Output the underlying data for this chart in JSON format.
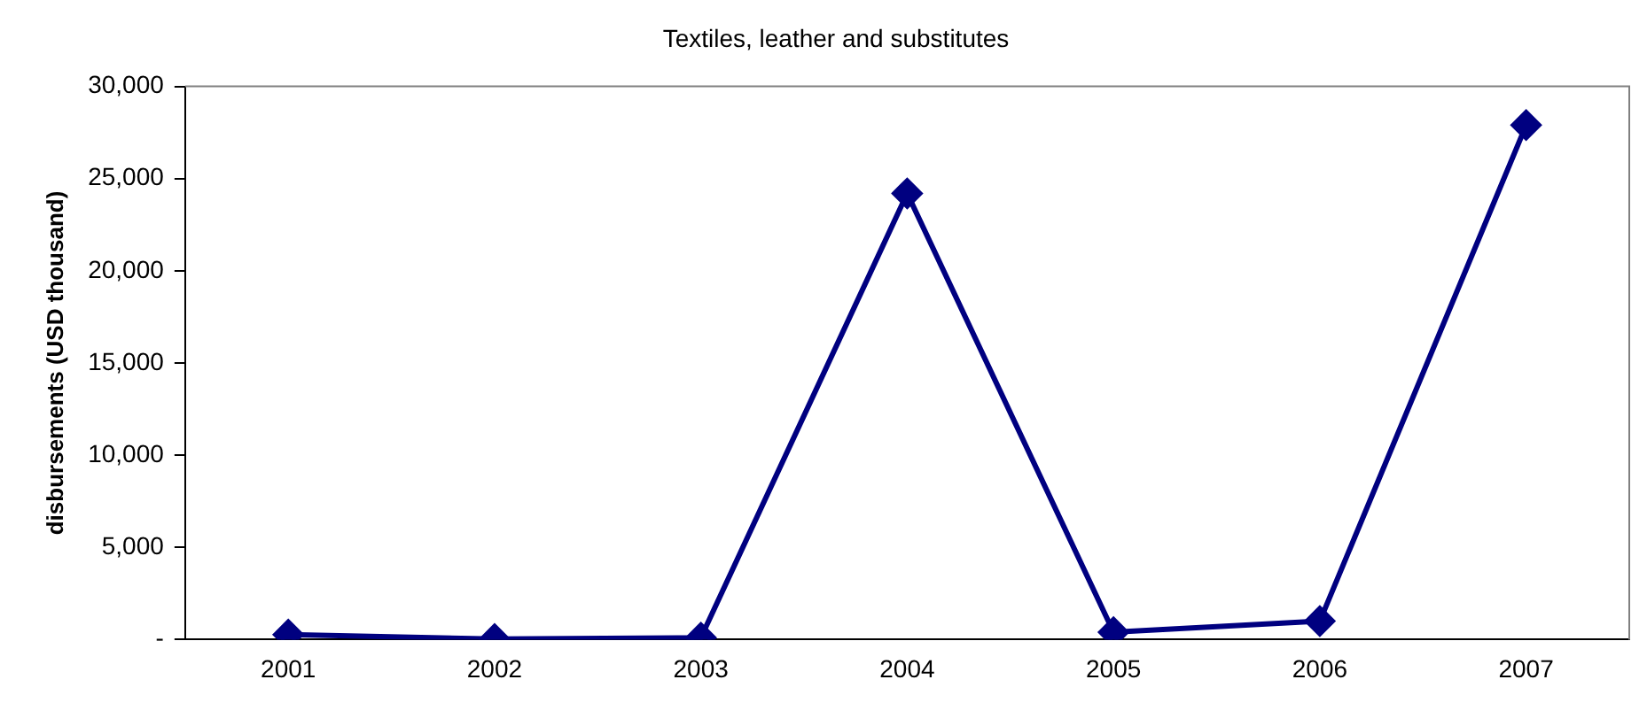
{
  "chart_data": {
    "type": "line",
    "title": "Textiles, leather and substitutes",
    "ylabel": "disbursements (USD thousand)",
    "categories": [
      "2001",
      "2002",
      "2003",
      "2004",
      "2005",
      "2006",
      "2007"
    ],
    "series": [
      {
        "color": "#000080",
        "values": [
          270,
          30,
          100,
          24200,
          400,
          1000,
          27900
        ]
      }
    ],
    "ylim": [
      0,
      30000
    ],
    "yticks": [
      {
        "value": 0,
        "label": "-"
      },
      {
        "value": 5000,
        "label": "5,000"
      },
      {
        "value": 10000,
        "label": "10,000"
      },
      {
        "value": 15000,
        "label": "15,000"
      },
      {
        "value": 20000,
        "label": "20,000"
      },
      {
        "value": 25000,
        "label": "25,000"
      },
      {
        "value": 30000,
        "label": "30,000"
      }
    ],
    "grid": false,
    "legend": false,
    "marker": "diamond",
    "line_style": "solid"
  }
}
